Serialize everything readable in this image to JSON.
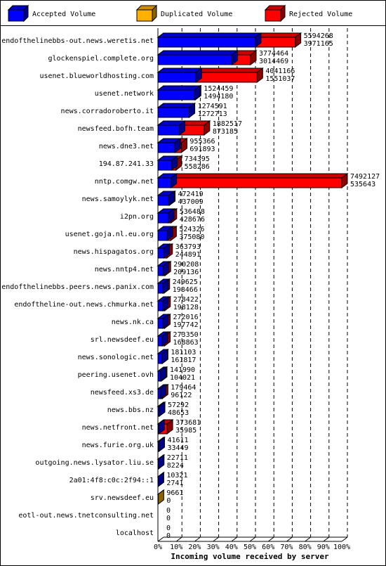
{
  "chart_data": {
    "type": "bar3d_overlay",
    "xlabel": "Incoming volume received by server",
    "categories": [
      "endofthelinebbs-out.news.weretis.net",
      "glockenspiel.complete.org",
      "usenet.blueworldhosting.com",
      "usenet.network",
      "news.corradoroberto.it",
      "newsfeed.bofh.team",
      "news.dne3.net",
      "194.87.241.33",
      "nntp.comgw.net",
      "news.samoylyk.net",
      "i2pn.org",
      "usenet.goja.nl.eu.org",
      "news.hispagatos.org",
      "news.nntp4.net",
      "endofthelinebbs.peers.news.panix.com",
      "endoftheline-out.news.chmurka.net",
      "news.nk.ca",
      "srl.newsdeef.eu",
      "news.sonologic.net",
      "peering.usenet.ovh",
      "newsfeed.xs3.de",
      "news.bbs.nz",
      "news.netfront.net",
      "news.furie.org.uk",
      "outgoing.news.lysator.liu.se",
      "2a01:4f8:c0c:2f94::1",
      "srv.newsdeef.eu",
      "eotl-out.news.tnetconsulting.net",
      "localhost"
    ],
    "series": [
      {
        "name": "Accepted Volume",
        "color": "#0000ff",
        "values": [
          3971165,
          3014469,
          1551037,
          1494180,
          1272713,
          873185,
          691893,
          558286,
          535643,
          437009,
          428676,
          375080,
          244891,
          209136,
          198466,
          198128,
          197742,
          168863,
          161817,
          104021,
          96122,
          48653,
          35985,
          33449,
          8224,
          2741,
          0,
          0,
          0
        ]
      },
      {
        "name": "Duplicated Volume",
        "color": "#ffb000",
        "values": [
          null,
          null,
          null,
          null,
          null,
          null,
          null,
          null,
          null,
          null,
          null,
          null,
          null,
          null,
          null,
          null,
          null,
          null,
          null,
          null,
          null,
          null,
          null,
          null,
          null,
          null,
          9661,
          null,
          null
        ]
      },
      {
        "name": "Rejected Volume",
        "color": "#ff0000",
        "values": [
          5594268,
          3774464,
          4041166,
          1524459,
          1274591,
          1882517,
          955366,
          734395,
          7492127,
          472419,
          536488,
          524326,
          363793,
          290208,
          249625,
          278422,
          272016,
          273350,
          181103,
          141990,
          179464,
          57292,
          373681,
          41611,
          22711,
          10321,
          null,
          0,
          0
        ]
      }
    ],
    "xlim": [
      0,
      7492127
    ],
    "xticks": [
      {
        "value": 0,
        "label": "0%"
      },
      {
        "value": 749212.7,
        "label": "10%"
      },
      {
        "value": 1498425.4,
        "label": "20%"
      },
      {
        "value": 2247638.1,
        "label": "30%"
      },
      {
        "value": 2996850.8,
        "label": "40%"
      },
      {
        "value": 3746063.5,
        "label": "50%"
      },
      {
        "value": 4495276.2,
        "label": "60%"
      },
      {
        "value": 5244488.9,
        "label": "70%"
      },
      {
        "value": 5993701.6,
        "label": "80%"
      },
      {
        "value": 6742914.3,
        "label": "90%"
      },
      {
        "value": 7492127,
        "label": "100%"
      }
    ],
    "grid": true
  }
}
